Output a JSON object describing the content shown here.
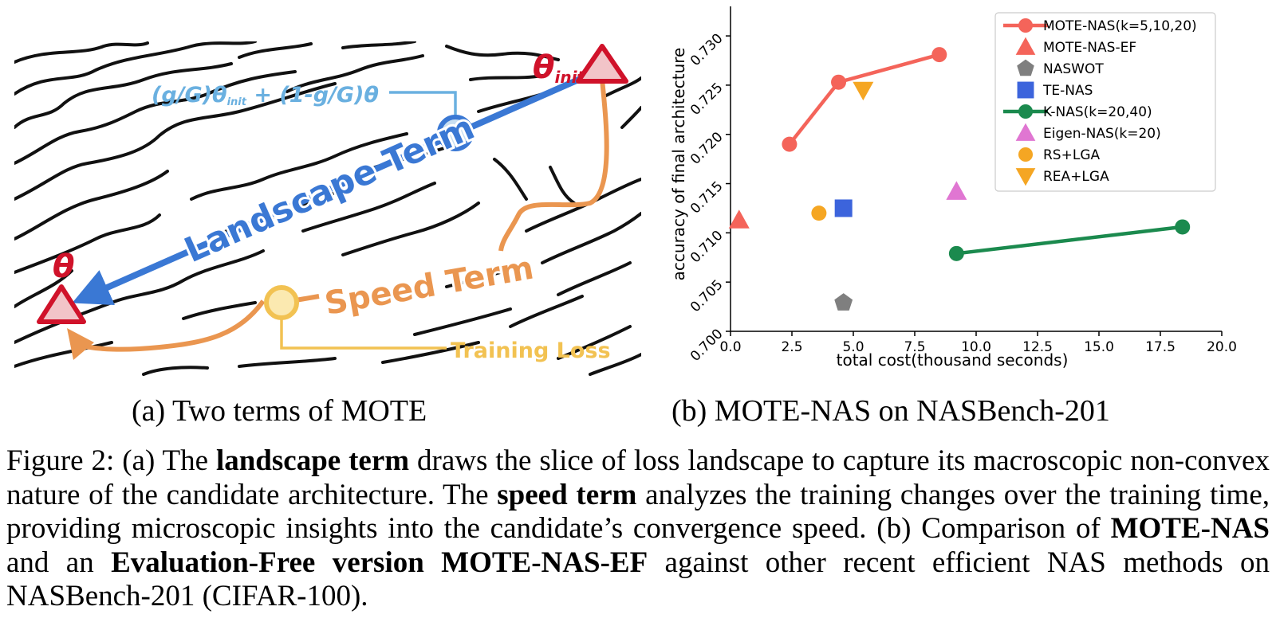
{
  "panel_a": {
    "theta_label": "θ",
    "theta_init_label": "θ",
    "theta_init_sub": "init",
    "interp_part1": "(g/G)θ",
    "interp_sub": "init",
    "interp_part2": " + (1-g/G)θ",
    "landscape_label": "Landscape Term",
    "speed_label": "Speed Term",
    "training_loss_label": "Training Loss",
    "colors": {
      "landscape": "#3a78d4",
      "speed": "#ea9650",
      "training_loss": "#f2c252",
      "theta": "#d0122a",
      "interp": "#6ab0e0"
    }
  },
  "subcaption_a": "(a) Two terms of MOTE",
  "subcaption_b": "(b) MOTE-NAS on NASBench-201",
  "chart_data": {
    "type": "scatter",
    "xlabel": "total cost(thousand seconds)",
    "ylabel": "accuracy of final architecture",
    "xlim": [
      0.0,
      20.0
    ],
    "ylim": [
      0.7,
      0.733
    ],
    "xticks": [
      "0.0",
      "2.5",
      "5.0",
      "7.5",
      "10.0",
      "12.5",
      "15.0",
      "17.5",
      "20.0"
    ],
    "yticks": [
      "0.700",
      "0.705",
      "0.710",
      "0.715",
      "0.720",
      "0.725",
      "0.730"
    ],
    "legend_position": "top-right",
    "series": [
      {
        "name": "MOTE-NAS(k=5,10,20)",
        "marker": "circle-line",
        "color": "#f4645a",
        "points": [
          [
            2.4,
            0.719
          ],
          [
            4.4,
            0.7253
          ],
          [
            8.5,
            0.7281
          ]
        ]
      },
      {
        "name": "MOTE-NAS-EF",
        "marker": "triangle-up",
        "color": "#f4645a",
        "points": [
          [
            0.35,
            0.7113
          ]
        ]
      },
      {
        "name": "NASWOT",
        "marker": "pentagon",
        "color": "#7f7f7f",
        "points": [
          [
            4.6,
            0.7029
          ]
        ]
      },
      {
        "name": "TE-NAS",
        "marker": "square",
        "color": "#3c64dc",
        "points": [
          [
            4.6,
            0.7125
          ]
        ]
      },
      {
        "name": "K-NAS(k=20,40)",
        "marker": "circle-line",
        "color": "#1b8a4e",
        "points": [
          [
            9.2,
            0.7079
          ],
          [
            18.4,
            0.7106
          ]
        ]
      },
      {
        "name": "Eigen-NAS(k=20)",
        "marker": "triangle-up",
        "color": "#e076d2",
        "points": [
          [
            9.2,
            0.7142
          ]
        ]
      },
      {
        "name": "RS+LGA",
        "marker": "circle",
        "color": "#f5a623",
        "points": [
          [
            3.6,
            0.712
          ]
        ]
      },
      {
        "name": "REA+LGA",
        "marker": "triangle-down",
        "color": "#f5a623",
        "points": [
          [
            5.4,
            0.7245
          ]
        ]
      }
    ]
  },
  "caption": {
    "s1": "Figure 2: (a) The ",
    "b1": "landscape term",
    "s2": " draws the slice of loss landscape to capture its macroscopic non-convex nature of the candidate architecture.  The ",
    "b2": "speed term",
    "s3": " analyzes the training changes over the training time, providing microscopic insights into the candidate’s convergence speed. (b) Comparison of ",
    "b3": "MOTE-NAS",
    "s4": " and an ",
    "b4": "Evaluation-Free version MOTE-NAS-EF",
    "s5": " against other recent efficient NAS methods on NASBench-201 (CIFAR-100)."
  }
}
